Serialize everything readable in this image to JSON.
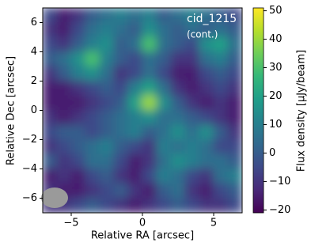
{
  "chart_data": {
    "type": "heatmap",
    "annotation": [
      "cid_1215",
      "(cont.)"
    ],
    "xlabel": "Relative RA [arcsec]",
    "ylabel": "Relative Dec [arcsec]",
    "colorbar_label": "Flux density [μJy/beam]",
    "colormap": "viridis",
    "xlim": [
      -7,
      7
    ],
    "ylim": [
      -7,
      7
    ],
    "clim": [
      -21,
      51
    ],
    "xticks": [
      {
        "value": -5,
        "label": "−5"
      },
      0,
      5
    ],
    "yticks": [
      6,
      4,
      2,
      0,
      {
        "value": -2,
        "label": "−2"
      },
      {
        "value": -4,
        "label": "−4"
      },
      {
        "value": -6,
        "label": "−6"
      }
    ],
    "cticks": [
      {
        "value": -20,
        "label": "−20"
      },
      {
        "value": -10,
        "label": "−10"
      },
      0,
      10,
      20,
      30,
      40,
      50
    ],
    "x": [
      -6.5,
      -5.5,
      -4.5,
      -3.5,
      -2.5,
      -1.5,
      -0.5,
      0.5,
      1.5,
      2.5,
      3.5,
      4.5,
      5.5,
      6.5
    ],
    "y": [
      6.5,
      5.5,
      4.5,
      3.5,
      2.5,
      1.5,
      0.5,
      -0.5,
      -1.5,
      -2.5,
      -3.5,
      -4.5,
      -5.5,
      -6.5
    ],
    "z": [
      [
        -5,
        -15,
        -10,
        0,
        5,
        10,
        5,
        10,
        0,
        5,
        10,
        5,
        0,
        -5
      ],
      [
        -10,
        -15,
        -5,
        5,
        10,
        5,
        0,
        15,
        5,
        0,
        5,
        0,
        5,
        0
      ],
      [
        -5,
        -10,
        0,
        10,
        15,
        0,
        5,
        30,
        5,
        0,
        -5,
        15,
        20,
        5
      ],
      [
        0,
        5,
        15,
        30,
        10,
        0,
        -5,
        5,
        0,
        -10,
        -10,
        5,
        10,
        0
      ],
      [
        -10,
        0,
        10,
        15,
        5,
        -10,
        -5,
        5,
        -5,
        -15,
        -15,
        -5,
        0,
        -5
      ],
      [
        -15,
        -15,
        -10,
        -5,
        0,
        -5,
        10,
        20,
        5,
        -10,
        -15,
        -10,
        -5,
        -10
      ],
      [
        -15,
        -15,
        -15,
        -10,
        -5,
        0,
        20,
        40,
        15,
        0,
        -10,
        -15,
        -10,
        -15
      ],
      [
        -10,
        -15,
        -10,
        -5,
        0,
        5,
        10,
        15,
        5,
        5,
        0,
        -5,
        -10,
        -15
      ],
      [
        -5,
        0,
        0,
        -5,
        0,
        5,
        10,
        0,
        5,
        15,
        5,
        15,
        0,
        -10
      ],
      [
        -10,
        -5,
        0,
        5,
        10,
        0,
        -5,
        -10,
        10,
        5,
        10,
        5,
        -5,
        -5
      ],
      [
        0,
        -10,
        -5,
        5,
        5,
        -5,
        -15,
        -10,
        5,
        15,
        10,
        5,
        5,
        0
      ],
      [
        -15,
        -10,
        -15,
        -5,
        0,
        -10,
        -15,
        -5,
        10,
        5,
        -5,
        -10,
        5,
        10
      ],
      [
        -10,
        -15,
        -15,
        -10,
        -5,
        0,
        -10,
        -15,
        0,
        5,
        -10,
        -15,
        -5,
        0
      ],
      [
        -10,
        -10,
        -5,
        0,
        -5,
        -10,
        -15,
        -10,
        -5,
        0,
        -5,
        -10,
        -10,
        -5
      ]
    ]
  }
}
